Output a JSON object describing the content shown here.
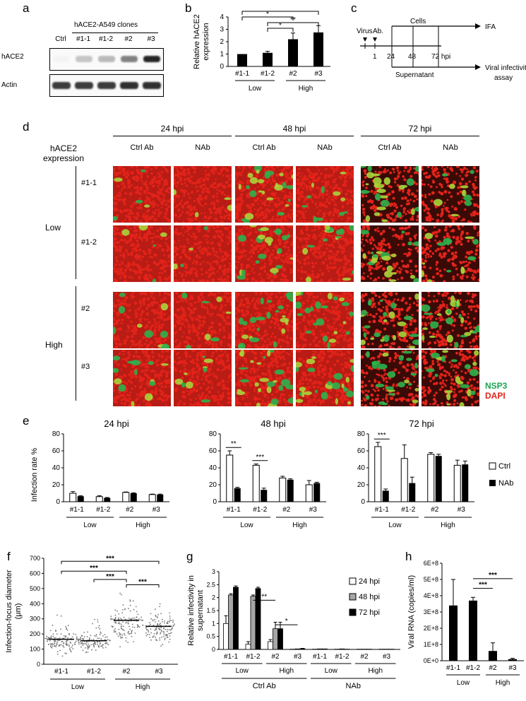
{
  "panels": {
    "a": "a",
    "b": "b",
    "c": "c",
    "d": "d",
    "e": "e",
    "f": "f",
    "g": "g",
    "h": "h"
  },
  "panel_a": {
    "header": "hACE2-A549 clones",
    "lanes": [
      "Ctrl",
      "#1-1",
      "#1-2",
      "#2",
      "#3"
    ],
    "rows": [
      "hACE2",
      "Actin"
    ],
    "hace2_band_intensity": [
      0.05,
      0.25,
      0.3,
      0.55,
      0.95
    ],
    "actin_band_intensity": [
      0.85,
      0.85,
      0.85,
      0.9,
      0.9
    ]
  },
  "panel_c": {
    "virus": "Virus",
    "ab": "Ab.",
    "cells": "Cells",
    "ifa": "IFA",
    "t1": "1",
    "t24": "24",
    "t48": "48",
    "t72": "72 hpi",
    "supernatant": "Supernatant",
    "assay_line1": "Viral infectivity",
    "assay_line2": "assay"
  },
  "panel_d": {
    "timepoints": [
      "24 hpi",
      "48 hpi",
      "72 hpi"
    ],
    "columns": [
      "Ctrl Ab",
      "NAb",
      "Ctrl Ab",
      "NAb",
      "Ctrl Ab",
      "NAb"
    ],
    "rowlabel_line1": "hACE2",
    "rowlabel_line2": "expression",
    "low": "Low",
    "high": "High",
    "rows": [
      "#1-1",
      "#1-2",
      "#2",
      "#3"
    ],
    "green_coverage": [
      [
        0.12,
        0.08,
        0.55,
        0.25,
        0.55,
        0.2
      ],
      [
        0.1,
        0.08,
        0.5,
        0.3,
        0.45,
        0.3
      ],
      [
        0.2,
        0.15,
        0.5,
        0.5,
        0.55,
        0.5
      ],
      [
        0.3,
        0.2,
        0.55,
        0.55,
        0.5,
        0.45
      ]
    ],
    "legend_nsp3": "NSP3",
    "legend_dapi": "DAPI",
    "color_green": "#2bb24c",
    "color_red": "#e2231a"
  },
  "chart_data": [
    {
      "panel": "b",
      "type": "bar",
      "categories": [
        "#1-1",
        "#1-2",
        "#2",
        "#3"
      ],
      "values": [
        1.0,
        1.1,
        2.2,
        2.75
      ],
      "errors": [
        0.0,
        0.12,
        0.5,
        0.55
      ],
      "ylabel_line1": "Relative hACE2",
      "ylabel_line2": "expression",
      "ylim": [
        0,
        4
      ],
      "yticks": [
        "0",
        "1",
        "2",
        "3",
        "4"
      ],
      "groups": [
        "Low",
        "High"
      ],
      "significance": [
        [
          "#1-1",
          "#3",
          "**"
        ],
        [
          "#1-1",
          "#2",
          "*"
        ],
        [
          "#1-2",
          "#2",
          "*"
        ],
        [
          "#1-2",
          "#3",
          "**"
        ]
      ]
    },
    {
      "panel": "e",
      "type": "bar",
      "ylabel": "Infection rate %",
      "categories": [
        "#1-1",
        "#1-2",
        "#2",
        "#3"
      ],
      "groups": [
        "Low",
        "High"
      ],
      "legend": [
        "Ctrl",
        "NAb"
      ],
      "subplots": [
        {
          "title": "24 hpi",
          "ctrl": [
            10,
            6,
            11,
            8.5
          ],
          "nab": [
            6.5,
            4.5,
            10,
            8.5
          ],
          "ctrl_err": [
            2,
            1,
            0.5,
            0.5
          ],
          "nab_err": [
            0.5,
            0.5,
            0.5,
            0.5
          ],
          "sig": []
        },
        {
          "title": "48 hpi",
          "ctrl": [
            55,
            43,
            28,
            20
          ],
          "nab": [
            16,
            14,
            26,
            22
          ],
          "ctrl_err": [
            5,
            1.5,
            2,
            5
          ],
          "nab_err": [
            1,
            2,
            1,
            1
          ],
          "sig": [
            [
              "#1-1",
              "**"
            ],
            [
              "#1-2",
              "***"
            ]
          ]
        },
        {
          "title": "72 hpi",
          "ctrl": [
            65,
            51,
            56,
            43
          ],
          "nab": [
            13,
            22,
            54,
            44
          ],
          "ctrl_err": [
            5,
            16,
            2,
            6
          ],
          "nab_err": [
            2,
            7,
            2,
            4
          ],
          "sig": [
            [
              "#1-1",
              "***"
            ]
          ]
        }
      ],
      "ylim": [
        0,
        80
      ],
      "yticks": [
        "0",
        "20",
        "40",
        "60",
        "80"
      ]
    },
    {
      "panel": "f",
      "type": "scatter",
      "categories": [
        "#1-1",
        "#1-2",
        "#2",
        "#3"
      ],
      "medians": [
        165,
        155,
        290,
        250
      ],
      "spread_low": [
        40,
        50,
        90,
        80
      ],
      "spread_high": [
        420,
        380,
        620,
        560
      ],
      "ylabel_line1": "Infection-focus diameter",
      "ylabel_line2": "(μm)",
      "ylim": [
        0,
        700
      ],
      "yticks": [
        "0",
        "100",
        "200",
        "300",
        "400",
        "500",
        "600",
        "700"
      ],
      "groups": [
        "Low",
        "High"
      ],
      "significance": [
        [
          "#1-1",
          "#3",
          "***"
        ],
        [
          "#1-1",
          "#2",
          "***"
        ],
        [
          "#1-2",
          "#2",
          "***"
        ],
        [
          "#2",
          "#3",
          "***"
        ]
      ]
    },
    {
      "panel": "g",
      "type": "bar",
      "ylabel_line1": "Relative infectivity in",
      "ylabel_line2": "supernatant",
      "categories": [
        "#1-1",
        "#1-2",
        "#2",
        "#3",
        "#1-1",
        "#1-2",
        "#2",
        "#3"
      ],
      "series": [
        {
          "name": "24 hpi",
          "color": "#ffffff",
          "values": [
            1.0,
            0.2,
            0.3,
            0.01,
            0.01,
            0.01,
            0.01,
            0.01
          ],
          "errors": [
            0.3,
            0.1,
            0.08,
            0,
            0,
            0,
            0,
            0
          ]
        },
        {
          "name": "48 hpi",
          "color": "#a6a6a6",
          "values": [
            2.1,
            2.05,
            0.8,
            0.02,
            0.02,
            0.02,
            0.01,
            0.01
          ],
          "errors": [
            0.05,
            0.05,
            0.25,
            0,
            0,
            0,
            0,
            0
          ]
        },
        {
          "name": "72 hpi",
          "color": "#000000",
          "values": [
            2.4,
            2.35,
            0.8,
            0.03,
            0.02,
            0.01,
            0.01,
            0.01
          ],
          "errors": [
            0.05,
            0.05,
            0.25,
            0.01,
            0,
            0,
            0,
            0
          ]
        }
      ],
      "ylim": [
        0,
        3
      ],
      "yticks": [
        "0",
        "0.5",
        "1",
        "1.5",
        "2",
        "2.5",
        "3"
      ],
      "groups": [
        "Low",
        "High",
        "Low",
        "High"
      ],
      "supergroups": [
        "Ctrl Ab",
        "NAb"
      ],
      "sig": [
        [
          "#1-2",
          "#2",
          "**"
        ],
        [
          "#2",
          "#3",
          "*"
        ]
      ]
    },
    {
      "panel": "h",
      "type": "bar",
      "ylabel": "Viral RNA (copies/ml)",
      "categories": [
        "#1-1",
        "#1-2",
        "#2",
        "#3"
      ],
      "values": [
        340000000,
        370000000,
        60000000,
        10000000
      ],
      "errors": [
        160000000,
        20000000,
        50000000,
        5000000
      ],
      "ylim": [
        0,
        600000000
      ],
      "yticks": [
        "0E+0",
        "1E+8",
        "2E+8",
        "3E+8",
        "4E+8",
        "5E+8",
        "6E+8"
      ],
      "groups": [
        "Low",
        "High"
      ],
      "significance": [
        [
          "#1-2",
          "#2",
          "***"
        ],
        [
          "#1-2",
          "#3",
          "***"
        ]
      ]
    }
  ]
}
